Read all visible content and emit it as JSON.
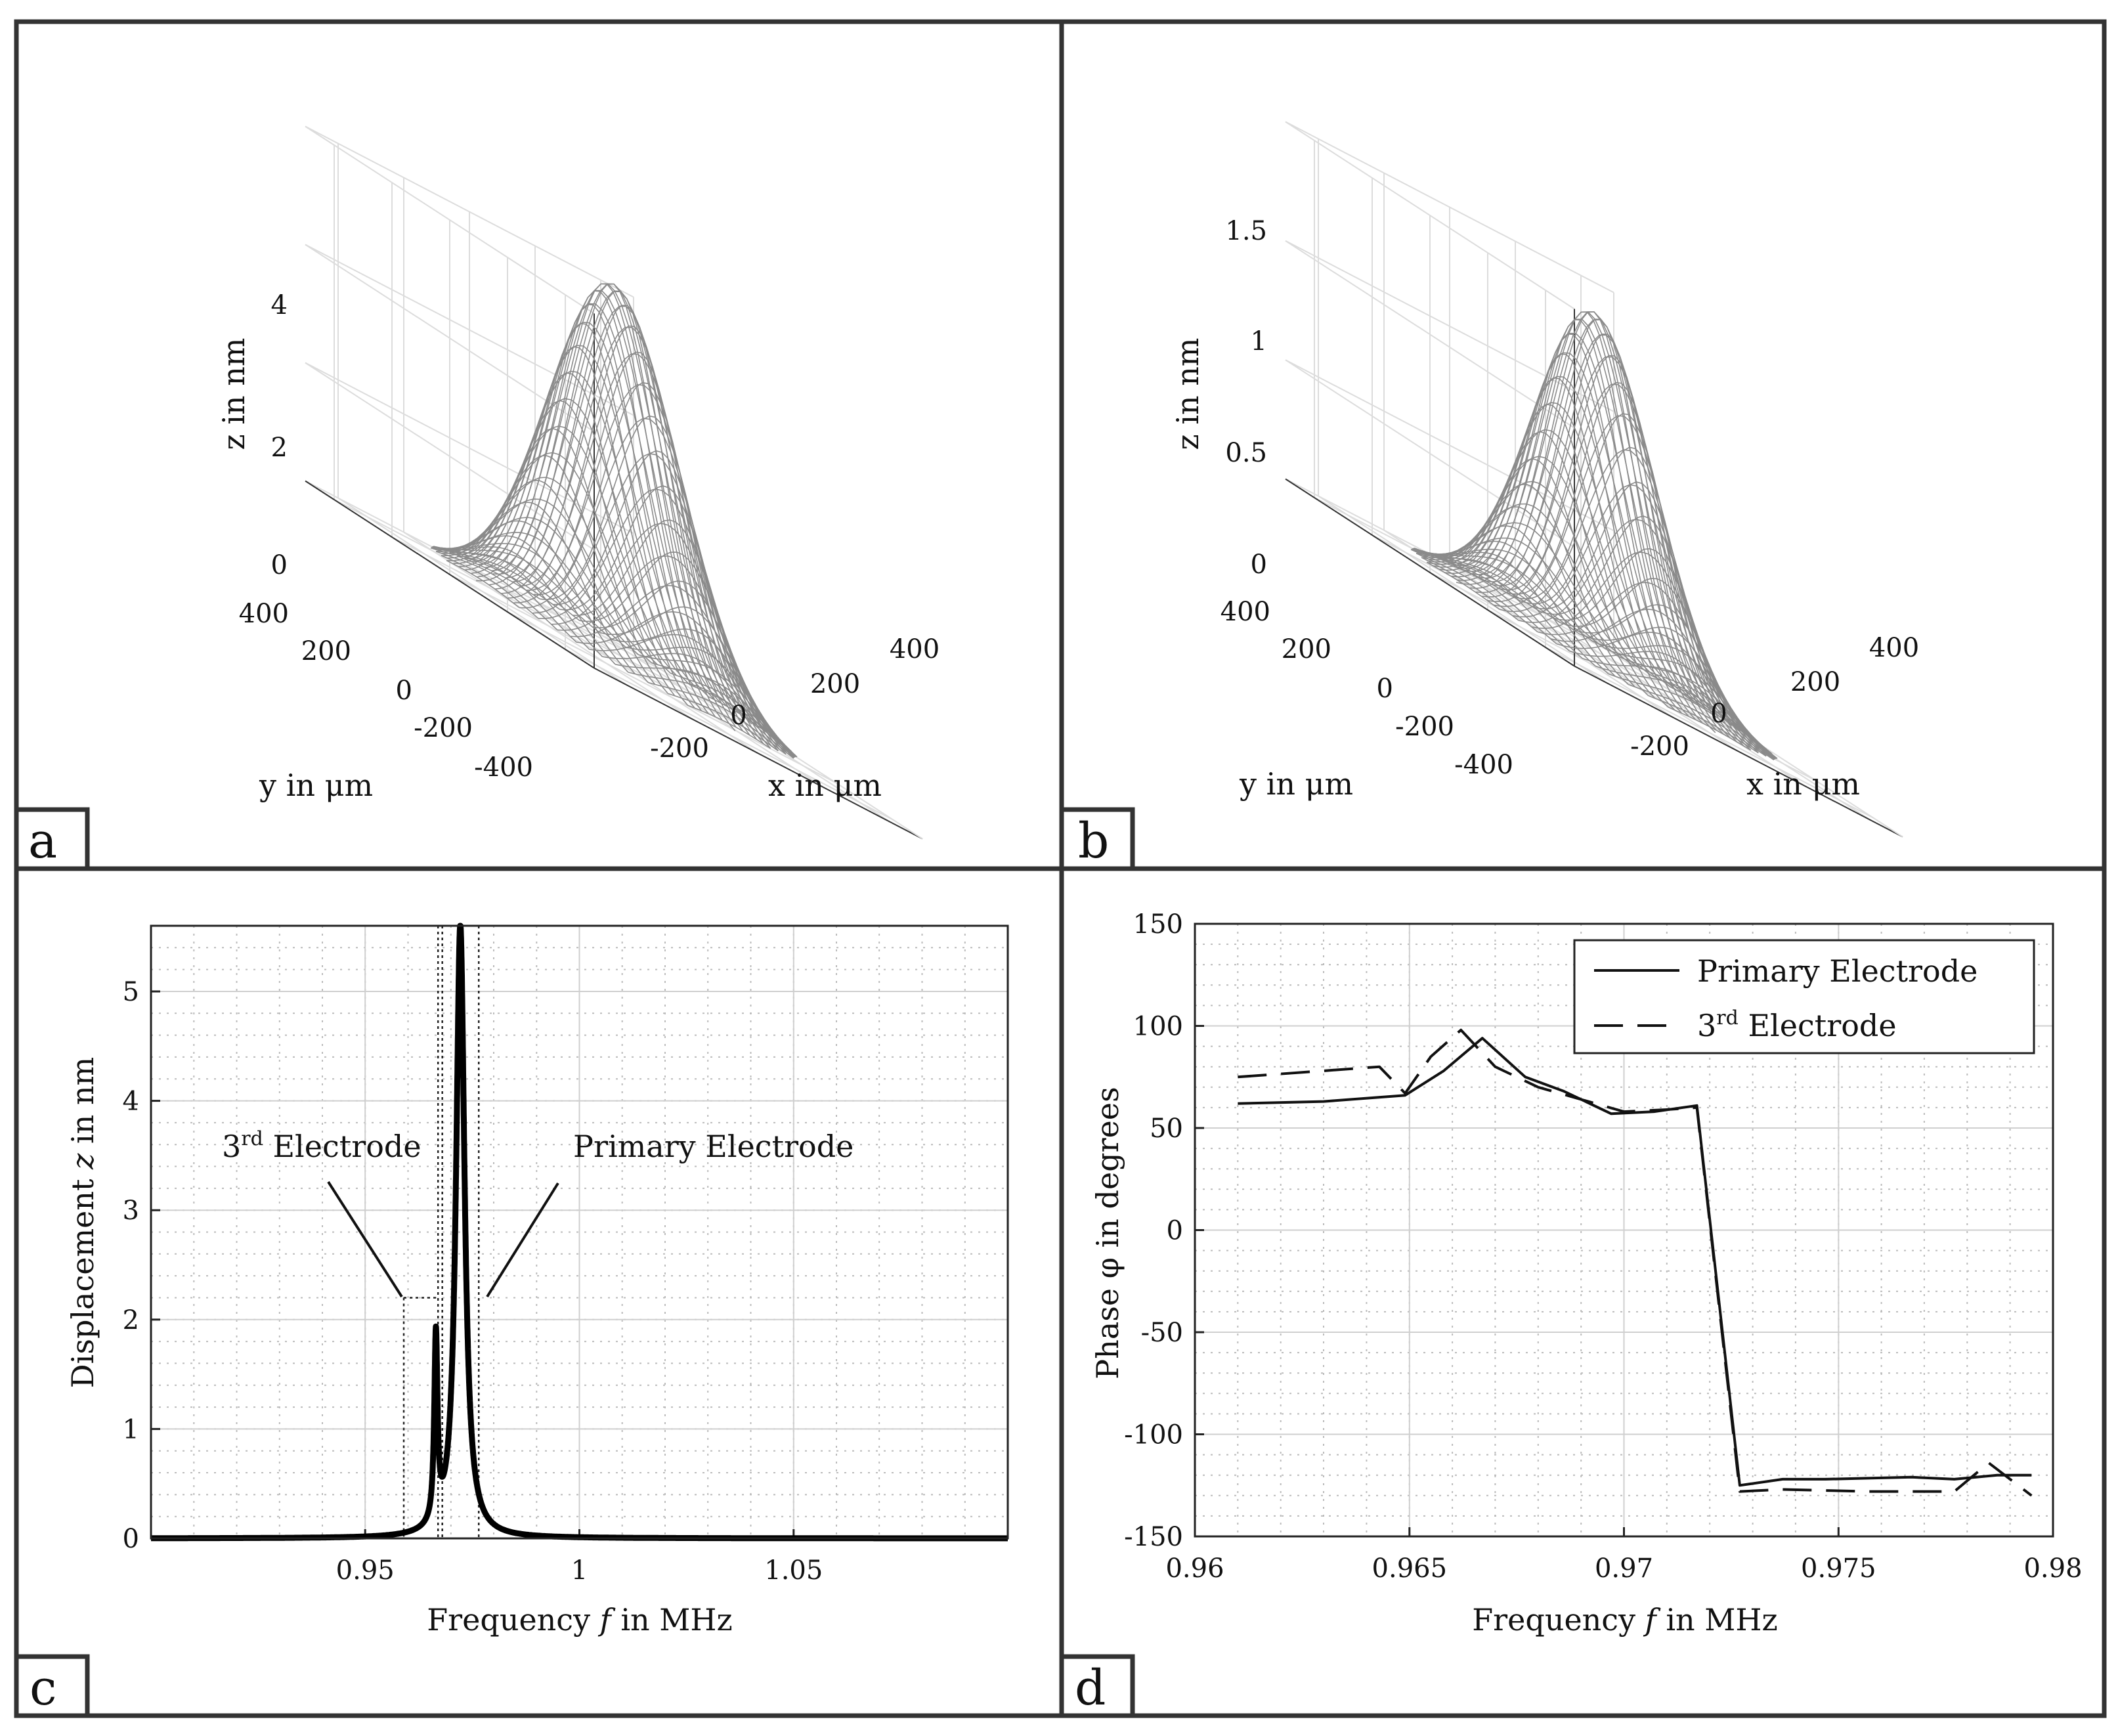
{
  "chart_data": [
    {
      "panel": "a",
      "type": "surface3d",
      "zlabel": "z in nm",
      "xlabel": "x in μm",
      "ylabel": "y in μm",
      "z_ticks": [
        "0",
        "2",
        "4"
      ],
      "x_ticks": [
        "-200",
        "0",
        "200",
        "400"
      ],
      "y_ticks": [
        "400",
        "200",
        "0",
        "-200",
        "-400"
      ],
      "peak": 5.3,
      "sigma_um": 150
    },
    {
      "panel": "b",
      "type": "surface3d",
      "zlabel": "z in nm",
      "xlabel": "x in μm",
      "ylabel": "y in μm",
      "z_ticks": [
        "0",
        "0.5",
        "1",
        "1.5"
      ],
      "x_ticks": [
        "-200",
        "0",
        "200",
        "400"
      ],
      "y_ticks": [
        "400",
        "200",
        "0",
        "-200",
        "-400"
      ],
      "peak": 1.55,
      "sigma_um": 140
    },
    {
      "panel": "c",
      "type": "line",
      "xlabel_parts": [
        "Frequency ",
        "f",
        " in MHz"
      ],
      "ylabel_parts": [
        "Displacement ",
        "z",
        " in nm"
      ],
      "xlim": [
        0.9,
        1.1
      ],
      "ylim": [
        0,
        5.6
      ],
      "x_ticks": [
        0.95,
        1,
        1.05
      ],
      "x_tick_labels": [
        "0.95",
        "1",
        "1.05"
      ],
      "y_ticks": [
        0,
        1,
        2,
        3,
        4,
        5
      ],
      "y_tick_labels": [
        "0",
        "1",
        "2",
        "3",
        "4",
        "5"
      ],
      "peaks": [
        {
          "name": "3rd Electrode",
          "f0": 0.9665,
          "amp": 1.7,
          "gamma": 0.00045
        },
        {
          "name": "Primary Electrode",
          "f0": 0.9722,
          "amp": 5.6,
          "gamma": 0.0012
        }
      ],
      "dotted_lines_x": [
        0.959,
        0.967,
        0.968,
        0.9765
      ],
      "dotted_box_y": 2.2,
      "annotations": {
        "third_prefix": "3",
        "third_sup": "rd",
        "third_suffix": " Electrode",
        "primary": "Primary Electrode"
      }
    },
    {
      "panel": "d",
      "type": "line",
      "xlabel_parts": [
        "Frequency ",
        "f",
        " in MHz"
      ],
      "ylabel": "Phase φ in degrees",
      "xlim": [
        0.96,
        0.98
      ],
      "ylim": [
        -150,
        150
      ],
      "x_ticks": [
        0.96,
        0.965,
        0.97,
        0.975,
        0.98
      ],
      "x_tick_labels": [
        "0.96",
        "0.965",
        "0.97",
        "0.975",
        "0.98"
      ],
      "y_ticks": [
        -150,
        -100,
        -50,
        0,
        50,
        100,
        150
      ],
      "y_tick_labels": [
        "-150",
        "-100",
        "-50",
        "0",
        "50",
        "100",
        "150"
      ],
      "series": [
        {
          "name": "Primary Electrode",
          "style": "solid",
          "x": [
            0.961,
            0.963,
            0.9649,
            0.9658,
            0.9667,
            0.9677,
            0.9686,
            0.9697,
            0.9707,
            0.9717,
            0.9727,
            0.9737,
            0.9747,
            0.9767,
            0.9777,
            0.9787,
            0.9795
          ],
          "y": [
            62,
            63,
            66,
            78,
            94,
            75,
            68,
            57,
            58,
            61,
            -125,
            -122,
            -122,
            -121,
            -122,
            -120,
            -120
          ]
        },
        {
          "name": "3rd Electrode",
          "style": "dashed",
          "x": [
            0.961,
            0.963,
            0.9643,
            0.9649,
            0.9655,
            0.9662,
            0.967,
            0.968,
            0.969,
            0.97,
            0.971,
            0.9717,
            0.9727,
            0.9737,
            0.9757,
            0.9777,
            0.9785,
            0.9795
          ],
          "y": [
            75,
            78,
            80,
            67,
            85,
            98,
            80,
            70,
            64,
            58,
            59,
            60,
            -128,
            -127,
            -128,
            -128,
            -114,
            -130
          ]
        }
      ],
      "legend_position": "top-right",
      "legend_third_prefix": "3",
      "legend_third_sup": "rd",
      "legend_third_suffix": " Electrode"
    }
  ],
  "panel_labels": [
    "a",
    "b",
    "c",
    "d"
  ]
}
